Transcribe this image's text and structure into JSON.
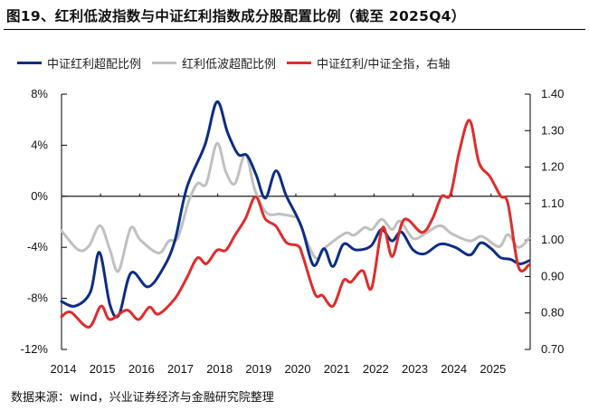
{
  "title": "图19、红利低波指数与中证红利指数成分股配置比例（截至 2025Q4）",
  "source": "数据来源：wind，兴业证券经济与金融研究院整理",
  "chart_data": {
    "type": "line",
    "title": "图19、红利低波指数与中证红利指数成分股配置比例（截至 2025Q4）",
    "legend_position": "top",
    "grid": false,
    "x_ticks": [
      "2014",
      "2015",
      "2016",
      "2017",
      "2018",
      "2019",
      "2020",
      "2021",
      "2022",
      "2023",
      "2024",
      "2025"
    ],
    "xlim": [
      2014,
      2026
    ],
    "y_left": {
      "ylim": [
        -12,
        8
      ],
      "ticks": [
        "8%",
        "4%",
        "0%",
        "-4%",
        "-8%",
        "-12%"
      ],
      "tick_values": [
        8,
        4,
        0,
        -4,
        -8,
        -12
      ]
    },
    "y_right": {
      "ylim": [
        0.7,
        1.4
      ],
      "ticks": [
        "1.40",
        "1.30",
        "1.20",
        "1.10",
        "1.00",
        "0.90",
        "0.80",
        "0.70"
      ],
      "tick_values": [
        1.4,
        1.3,
        1.2,
        1.1,
        1.0,
        0.9,
        0.8,
        0.7
      ]
    },
    "series": [
      {
        "name": "中证红利超配比例",
        "axis": "left",
        "color": "#0d2d84",
        "points": [
          [
            2014.0,
            -8.25
          ],
          [
            2014.35,
            -8.6
          ],
          [
            2014.74,
            -7.5
          ],
          [
            2014.97,
            -4.4
          ],
          [
            2015.24,
            -8.5
          ],
          [
            2015.47,
            -9.3
          ],
          [
            2015.78,
            -6.0
          ],
          [
            2016.21,
            -7.1
          ],
          [
            2016.6,
            -5.65
          ],
          [
            2016.9,
            -3.5
          ],
          [
            2017.21,
            0.7
          ],
          [
            2017.67,
            4.0
          ],
          [
            2017.98,
            7.4
          ],
          [
            2018.25,
            5.0
          ],
          [
            2018.52,
            3.3
          ],
          [
            2018.75,
            3.2
          ],
          [
            2018.98,
            1.7
          ],
          [
            2019.22,
            -0.15
          ],
          [
            2019.49,
            2.0
          ],
          [
            2019.76,
            0.0
          ],
          [
            2020.14,
            -2.35
          ],
          [
            2020.45,
            -5.4
          ],
          [
            2020.72,
            -4.1
          ],
          [
            2020.95,
            -5.5
          ],
          [
            2021.22,
            -3.75
          ],
          [
            2021.53,
            -4.2
          ],
          [
            2021.92,
            -3.9
          ],
          [
            2022.19,
            -2.6
          ],
          [
            2022.46,
            -3.5
          ],
          [
            2022.7,
            -2.8
          ],
          [
            2023.0,
            -4.2
          ],
          [
            2023.3,
            -4.5
          ],
          [
            2023.69,
            -3.75
          ],
          [
            2024.08,
            -4.0
          ],
          [
            2024.46,
            -4.6
          ],
          [
            2024.73,
            -3.65
          ],
          [
            2025.0,
            -4.1
          ],
          [
            2025.24,
            -4.8
          ],
          [
            2025.5,
            -4.95
          ],
          [
            2025.74,
            -5.3
          ],
          [
            2025.97,
            -5.05
          ]
        ]
      },
      {
        "name": "红利低波超配比例",
        "axis": "left",
        "color": "#c0c0c0",
        "points": [
          [
            2014.0,
            -2.7
          ],
          [
            2014.43,
            -4.2
          ],
          [
            2014.7,
            -3.9
          ],
          [
            2014.99,
            -2.3
          ],
          [
            2015.24,
            -4.2
          ],
          [
            2015.46,
            -5.85
          ],
          [
            2015.77,
            -2.5
          ],
          [
            2016.01,
            -3.4
          ],
          [
            2016.48,
            -4.45
          ],
          [
            2016.75,
            -3.5
          ],
          [
            2016.98,
            -3.25
          ],
          [
            2017.25,
            -0.45
          ],
          [
            2017.48,
            1.0
          ],
          [
            2017.71,
            1.0
          ],
          [
            2017.98,
            4.15
          ],
          [
            2018.21,
            1.9
          ],
          [
            2018.44,
            1.0
          ],
          [
            2018.71,
            3.3
          ],
          [
            2018.94,
            0.6
          ],
          [
            2019.25,
            -1.3
          ],
          [
            2019.6,
            -1.4
          ],
          [
            2019.95,
            -1.6
          ],
          [
            2020.06,
            -1.85
          ],
          [
            2020.49,
            -4.8
          ],
          [
            2020.76,
            -4.0
          ],
          [
            2021.26,
            -2.9
          ],
          [
            2021.49,
            -3.05
          ],
          [
            2021.76,
            -2.45
          ],
          [
            2021.95,
            -2.6
          ],
          [
            2022.2,
            -1.8
          ],
          [
            2022.46,
            -2.6
          ],
          [
            2022.67,
            -1.95
          ],
          [
            2023.0,
            -3.3
          ],
          [
            2023.3,
            -2.95
          ],
          [
            2023.69,
            -2.3
          ],
          [
            2024.0,
            -2.95
          ],
          [
            2024.46,
            -3.5
          ],
          [
            2024.77,
            -3.15
          ],
          [
            2025.2,
            -3.95
          ],
          [
            2025.43,
            -3.0
          ],
          [
            2025.7,
            -4.0
          ],
          [
            2025.97,
            -3.3
          ]
        ]
      },
      {
        "name": "中证红利/中证全指，右轴",
        "axis": "right",
        "color": "#e02b2b",
        "points": [
          [
            2014.0,
            0.79
          ],
          [
            2014.24,
            0.802
          ],
          [
            2014.7,
            0.761
          ],
          [
            2015.01,
            0.819
          ],
          [
            2015.24,
            0.782
          ],
          [
            2015.67,
            0.808
          ],
          [
            2015.97,
            0.782
          ],
          [
            2016.25,
            0.816
          ],
          [
            2016.48,
            0.797
          ],
          [
            2016.9,
            0.839
          ],
          [
            2017.21,
            0.897
          ],
          [
            2017.48,
            0.951
          ],
          [
            2017.71,
            0.935
          ],
          [
            2017.98,
            0.972
          ],
          [
            2018.21,
            0.972
          ],
          [
            2018.44,
            1.013
          ],
          [
            2018.71,
            1.059
          ],
          [
            2018.97,
            1.119
          ],
          [
            2019.21,
            1.059
          ],
          [
            2019.49,
            1.038
          ],
          [
            2019.76,
            0.993
          ],
          [
            2020.06,
            0.984
          ],
          [
            2020.18,
            0.955
          ],
          [
            2020.49,
            0.852
          ],
          [
            2020.68,
            0.848
          ],
          [
            2020.95,
            0.819
          ],
          [
            2021.22,
            0.889
          ],
          [
            2021.41,
            0.885
          ],
          [
            2021.71,
            0.916
          ],
          [
            2021.94,
            0.868
          ],
          [
            2022.22,
            1.034
          ],
          [
            2022.47,
            0.955
          ],
          [
            2022.77,
            1.056
          ],
          [
            2023.23,
            1.021
          ],
          [
            2023.5,
            1.059
          ],
          [
            2023.73,
            1.119
          ],
          [
            2023.96,
            1.125
          ],
          [
            2024.19,
            1.245
          ],
          [
            2024.45,
            1.328
          ],
          [
            2024.69,
            1.212
          ],
          [
            2024.97,
            1.174
          ],
          [
            2025.24,
            1.121
          ],
          [
            2025.43,
            1.1
          ],
          [
            2025.7,
            0.926
          ],
          [
            2025.97,
            0.932
          ]
        ]
      }
    ]
  }
}
